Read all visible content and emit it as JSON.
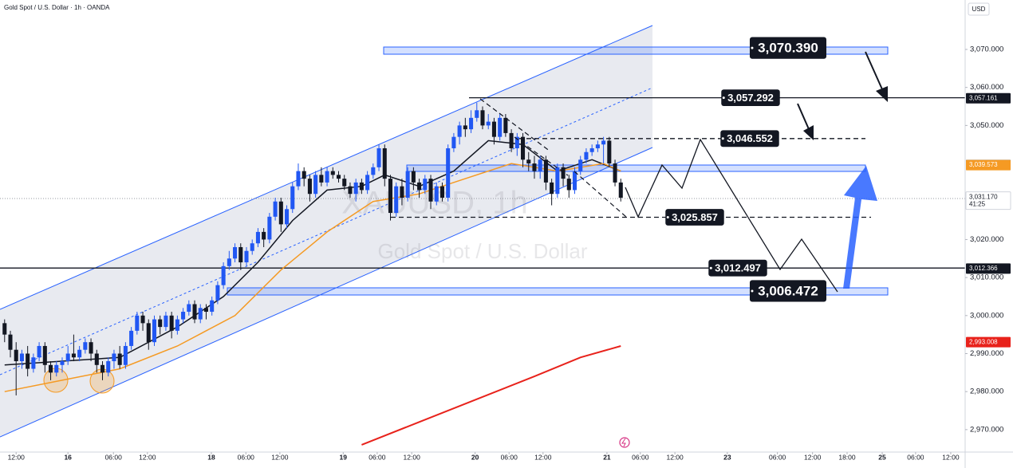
{
  "chart_data": {
    "type": "candlestick",
    "title": "Gold Spot / U.S. Dollar · 1h · OANDA",
    "watermark": "XAUUSD, 1h",
    "subtitle": "Gold Spot / U.S. Dollar",
    "currency": "USD",
    "up_color": "#2157f3",
    "down_color": "#131722",
    "ylim": [
      2964.1,
      3083.0
    ],
    "xlim": [
      -0.8,
      166.8
    ],
    "yticks": [
      {
        "value": 3070,
        "label": "3,070.000"
      },
      {
        "value": 3060,
        "label": "3,060.000"
      },
      {
        "value": 3050,
        "label": "3,050.000"
      },
      {
        "value": 3020,
        "label": "3,020.000"
      },
      {
        "value": 3010,
        "label": "3,010.000"
      },
      {
        "value": 3000,
        "label": "3,000.000"
      },
      {
        "value": 2990,
        "label": "2,990.000"
      },
      {
        "value": 2980,
        "label": "2,980.000"
      },
      {
        "value": 2970,
        "label": "2,970.000"
      }
    ],
    "xticks": [
      {
        "value": 2.0,
        "label": "12:00"
      },
      {
        "value": 11.0,
        "label": "16"
      },
      {
        "value": 18.9,
        "label": "06:00"
      },
      {
        "value": 24.8,
        "label": "12:00"
      },
      {
        "value": 35.9,
        "label": "18"
      },
      {
        "value": 41.9,
        "label": "06:00"
      },
      {
        "value": 47.8,
        "label": "12:00"
      },
      {
        "value": 58.8,
        "label": "19"
      },
      {
        "value": 64.7,
        "label": "06:00"
      },
      {
        "value": 70.7,
        "label": "12:00"
      },
      {
        "value": 81.7,
        "label": "20"
      },
      {
        "value": 87.6,
        "label": "06:00"
      },
      {
        "value": 93.5,
        "label": "12:00"
      },
      {
        "value": 104.6,
        "label": "21"
      },
      {
        "value": 110.4,
        "label": "06:00"
      },
      {
        "value": 116.4,
        "label": "12:00"
      },
      {
        "value": 125.5,
        "label": "23"
      },
      {
        "value": 134.2,
        "label": "06:00"
      },
      {
        "value": 140.3,
        "label": "12:00"
      },
      {
        "value": 146.3,
        "label": "18:00"
      },
      {
        "value": 152.4,
        "label": "25"
      },
      {
        "value": 158.2,
        "label": "06:00"
      },
      {
        "value": 164.3,
        "label": "12:00"
      }
    ],
    "ohlc": [
      [
        2998,
        2999,
        2993,
        2995
      ],
      [
        2995,
        2996,
        2989,
        2991
      ],
      [
        2991,
        2993,
        2979,
        2988
      ],
      [
        2988,
        2991,
        2986,
        2990
      ],
      [
        2990,
        2992,
        2984,
        2986
      ],
      [
        2986,
        2990,
        2985,
        2989
      ],
      [
        2989,
        2993,
        2988,
        2992
      ],
      [
        2992,
        2993,
        2985,
        2987
      ],
      [
        2987,
        2988,
        2983,
        2985
      ],
      [
        2985,
        2988,
        2984,
        2987
      ],
      [
        2987,
        2989,
        2985,
        2988
      ],
      [
        2988,
        2992,
        2987,
        2990
      ],
      [
        2990,
        2995,
        2988,
        2989
      ],
      [
        2989,
        2992,
        2988,
        2991
      ],
      [
        2991,
        2994,
        2990,
        2993
      ],
      [
        2993,
        2994,
        2988,
        2990
      ],
      [
        2990,
        2991,
        2985,
        2987
      ],
      [
        2987,
        2988,
        2983,
        2985
      ],
      [
        2985,
        2989,
        2984,
        2988
      ],
      [
        2988,
        2991,
        2986,
        2990
      ],
      [
        2990,
        2992,
        2986,
        2987
      ],
      [
        2987,
        2993,
        2986,
        2992
      ],
      [
        2992,
        2997,
        2991,
        2996
      ],
      [
        2996,
        3001,
        2995,
        3000
      ],
      [
        3000,
        3001,
        2996,
        2998
      ],
      [
        2998,
        2999,
        2991,
        2993
      ],
      [
        2993,
        3000,
        2992,
        2999
      ],
      [
        2999,
        3000,
        2995,
        2997
      ],
      [
        2997,
        3001,
        2996,
        3000
      ],
      [
        3000,
        3001,
        2994,
        2996
      ],
      [
        2996,
        3000,
        2995,
        2999
      ],
      [
        2999,
        3002,
        2998,
        3001
      ],
      [
        3001,
        3004,
        3000,
        3003
      ],
      [
        3003,
        3004,
        2998,
        2999
      ],
      [
        2999,
        3003,
        2998,
        3002
      ],
      [
        3002,
        3003,
        2999,
        3001
      ],
      [
        3001,
        3005,
        3000,
        3004
      ],
      [
        3004,
        3009,
        3003,
        3008
      ],
      [
        3008,
        3014,
        3007,
        3013
      ],
      [
        3013,
        3017,
        3012,
        3015
      ],
      [
        3015,
        3019,
        3014,
        3018
      ],
      [
        3018,
        3019,
        3012,
        3014
      ],
      [
        3014,
        3018,
        3013,
        3017
      ],
      [
        3017,
        3020,
        3016,
        3019
      ],
      [
        3019,
        3023,
        3018,
        3022
      ],
      [
        3022,
        3023,
        3018,
        3020
      ],
      [
        3020,
        3027,
        3019,
        3026
      ],
      [
        3026,
        3031,
        3025,
        3030
      ],
      [
        3030,
        3031,
        3022,
        3024
      ],
      [
        3024,
        3029,
        3023,
        3028
      ],
      [
        3028,
        3035,
        3027,
        3034
      ],
      [
        3034,
        3040,
        3033,
        3038
      ],
      [
        3038,
        3039,
        3034,
        3036
      ],
      [
        3036,
        3037,
        3030,
        3032
      ],
      [
        3032,
        3038,
        3031,
        3037
      ],
      [
        3037,
        3039,
        3034,
        3035
      ],
      [
        3035,
        3039,
        3034,
        3038
      ],
      [
        3038,
        3039,
        3036,
        3037
      ],
      [
        3037,
        3038,
        3035,
        3036
      ],
      [
        3036,
        3037,
        3033,
        3034
      ],
      [
        3034,
        3035,
        3031,
        3032
      ],
      [
        3032,
        3036,
        3030,
        3035
      ],
      [
        3035,
        3036,
        3032,
        3033
      ],
      [
        3033,
        3038,
        3032,
        3037
      ],
      [
        3037,
        3040,
        3036,
        3039
      ],
      [
        3039,
        3045,
        3038,
        3044
      ],
      [
        3044,
        3045,
        3034,
        3036
      ],
      [
        3036,
        3037,
        3025,
        3027
      ],
      [
        3027,
        3035,
        3026,
        3034
      ],
      [
        3034,
        3036,
        3029,
        3031
      ],
      [
        3031,
        3039,
        3030,
        3038
      ],
      [
        3038,
        3039,
        3033,
        3035
      ],
      [
        3035,
        3036,
        3031,
        3033
      ],
      [
        3033,
        3037,
        3032,
        3036
      ],
      [
        3036,
        3037,
        3028,
        3030
      ],
      [
        3030,
        3035,
        3029,
        3034
      ],
      [
        3034,
        3035,
        3030,
        3031
      ],
      [
        3031,
        3045,
        3030,
        3044
      ],
      [
        3044,
        3048,
        3043,
        3047
      ],
      [
        3047,
        3051,
        3045,
        3050
      ],
      [
        3050,
        3052,
        3047,
        3049
      ],
      [
        3049,
        3054,
        3048,
        3052
      ],
      [
        3052,
        3056,
        3051,
        3054
      ],
      [
        3054,
        3055,
        3049,
        3050
      ],
      [
        3050,
        3053,
        3049,
        3051
      ],
      [
        3051,
        3052,
        3045,
        3047
      ],
      [
        3047,
        3053,
        3046,
        3052
      ],
      [
        3052,
        3053,
        3047,
        3048
      ],
      [
        3048,
        3049,
        3043,
        3044
      ],
      [
        3044,
        3048,
        3042,
        3047
      ],
      [
        3047,
        3048,
        3039,
        3041
      ],
      [
        3041,
        3043,
        3038,
        3040
      ],
      [
        3040,
        3042,
        3036,
        3038
      ],
      [
        3038,
        3042,
        3036,
        3041
      ],
      [
        3041,
        3042,
        3033,
        3035
      ],
      [
        3035,
        3036,
        3029,
        3032
      ],
      [
        3032,
        3040,
        3031,
        3039
      ],
      [
        3039,
        3040,
        3034,
        3036
      ],
      [
        3036,
        3037,
        3031,
        3033
      ],
      [
        3033,
        3039,
        3032,
        3038
      ],
      [
        3038,
        3042,
        3037,
        3041
      ],
      [
        3041,
        3044,
        3040,
        3043
      ],
      [
        3043,
        3045,
        3042,
        3044
      ],
      [
        3044,
        3046,
        3043,
        3045
      ],
      [
        3045,
        3047,
        3040,
        3046
      ],
      [
        3046,
        3047,
        3039,
        3040
      ],
      [
        3040,
        3041,
        3034,
        3035
      ],
      [
        3035,
        3036,
        3030,
        3031
      ]
    ],
    "series": [
      {
        "color": "#131722",
        "x": [
          0,
          10,
          20,
          30,
          38,
          44,
          50,
          56,
          62,
          66,
          72,
          78,
          84,
          90,
          96,
          102,
          107
        ],
        "values": [
          2987,
          2988,
          2989,
          2997,
          3005,
          3014,
          3025,
          3033,
          3034,
          3037,
          3034,
          3038,
          3046,
          3045,
          3038,
          3041,
          3038
        ]
      },
      {
        "color": "#f59a23",
        "x": [
          0,
          10,
          20,
          30,
          40,
          48,
          56,
          64,
          72,
          80,
          88,
          96,
          104,
          107
        ],
        "values": [
          2980,
          2983,
          2986,
          2992,
          3000,
          3012,
          3022,
          3030,
          3032,
          3036,
          3040,
          3038,
          3040,
          3038
        ]
      },
      {
        "color": "#e8221b",
        "x": [
          62,
          72,
          82,
          92,
          100,
          107
        ],
        "values": [
          2966,
          2972,
          2978,
          2984,
          2989,
          2992
        ]
      }
    ],
    "levels": [
      {
        "value": 3070.39,
        "label": "3,070.390"
      },
      {
        "value": 3057.292,
        "label": "3,057.292"
      },
      {
        "value": 3046.552,
        "label": "3,046.552"
      },
      {
        "value": 3025.857,
        "label": "3,025.857"
      },
      {
        "value": 3012.497,
        "label": "3,012.497"
      },
      {
        "value": 3006.472,
        "label": "3,006.472"
      }
    ],
    "price_tags": [
      {
        "value": 3057.161,
        "label": "3,057.161",
        "color": "#131722"
      },
      {
        "value": 3039.583,
        "label": "3,039.583",
        "color": "#131722"
      },
      {
        "value": 3039.573,
        "label": "3,039.573",
        "color": "#f59a23"
      },
      {
        "value": 3031.17,
        "label": "3,031.170",
        "sublabel": "41:25",
        "color": "#ffffff"
      },
      {
        "value": 3012.366,
        "label": "3,012.366",
        "color": "#131722"
      },
      {
        "value": 2993.008,
        "label": "2,993.008",
        "color": "#e8221b"
      }
    ]
  }
}
